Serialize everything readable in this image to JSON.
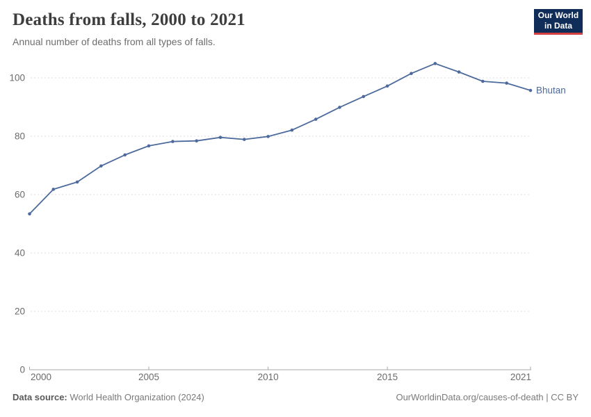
{
  "header": {
    "title": "Deaths from falls, 2000 to 2021",
    "subtitle": "Annual number of deaths from all types of falls.",
    "logo": {
      "line1": "Our World",
      "line2": "in Data"
    }
  },
  "chart_data": {
    "type": "line",
    "title": "Deaths from falls, 2000 to 2021",
    "xlabel": "",
    "ylabel": "",
    "x": [
      2000,
      2001,
      2002,
      2003,
      2004,
      2005,
      2006,
      2007,
      2008,
      2009,
      2010,
      2011,
      2012,
      2013,
      2014,
      2015,
      2016,
      2017,
      2018,
      2019,
      2020,
      2021
    ],
    "series": [
      {
        "name": "Bhutan",
        "values": [
          53.4,
          61.8,
          64.3,
          69.8,
          73.6,
          76.7,
          78.2,
          78.4,
          79.6,
          78.9,
          79.9,
          82.1,
          85.8,
          89.9,
          93.6,
          97.2,
          101.5,
          104.9,
          102.0,
          98.8,
          98.2,
          95.7
        ]
      }
    ],
    "yticks": [
      0,
      20,
      40,
      60,
      80,
      100
    ],
    "xticks": [
      2000,
      2005,
      2010,
      2015,
      2021
    ],
    "ylim": [
      0,
      110
    ],
    "xlim": [
      2000,
      2021
    ],
    "grid": "horizontal-dashed",
    "legend": "end-of-line-label",
    "markers": true
  },
  "footer": {
    "source_label": "Data source:",
    "source_text": " World Health Organization (2024)",
    "rights": "OurWorldinData.org/causes-of-death | CC BY"
  },
  "colors": {
    "line": "#4C6A9C",
    "grid": "#DDDDDD",
    "axis": "#A8A8A8",
    "tick_text": "#6B6B6B",
    "title_text": "#3D3D3D",
    "subtitle_text": "#6D6D6D",
    "footer_text": "#7A7A7A",
    "footer_label_text": "#5A5A5A",
    "logo_background": "#102D5A",
    "logo_accent": "#D43F3F"
  }
}
